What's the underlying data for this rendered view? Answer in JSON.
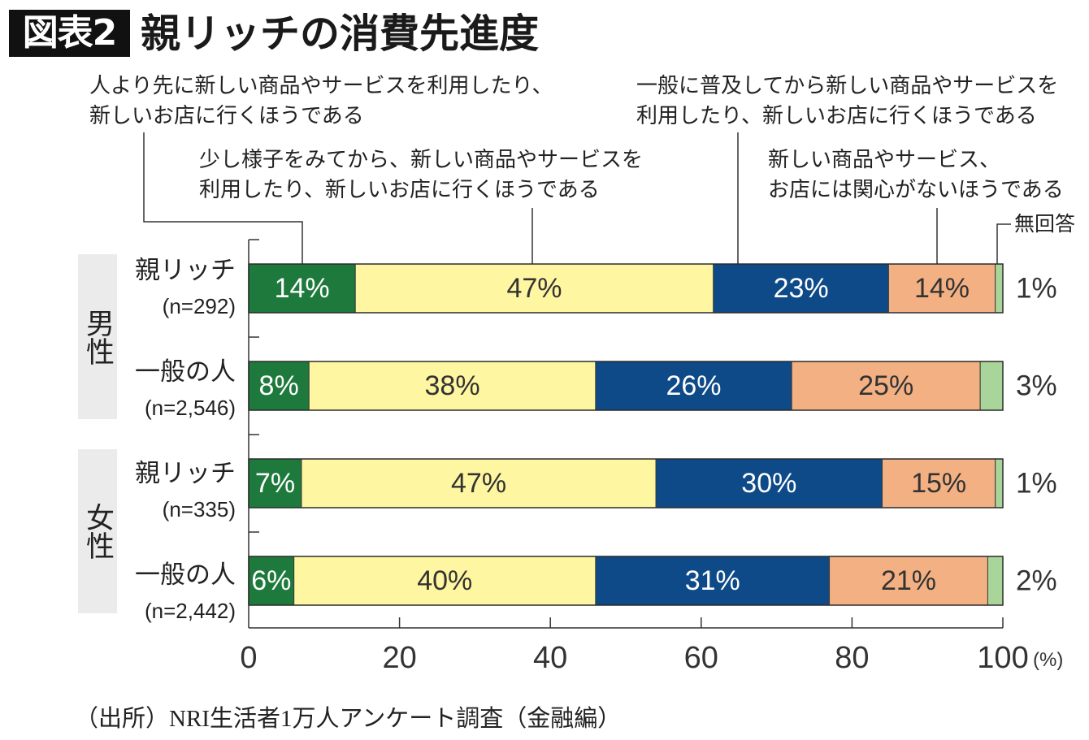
{
  "figure_number": "図表2",
  "chart_data": {
    "type": "bar",
    "orientation": "horizontal",
    "stacked": true,
    "normalized": true,
    "title": "親リッチの消費先進度",
    "groups": [
      {
        "label": "男性",
        "rows": [
          0,
          1
        ]
      },
      {
        "label": "女性",
        "rows": [
          2,
          3
        ]
      }
    ],
    "categories": [
      "親リッチ",
      "一般の人",
      "親リッチ",
      "一般の人"
    ],
    "category_notes": [
      "(n=292)",
      "(n=2,546)",
      "(n=335)",
      "(n=2,442)"
    ],
    "series": [
      {
        "name": "人より先に新しい商品やサービスを利用したり、\n新しいお店に行くほうである",
        "values": [
          14,
          8,
          7,
          6
        ],
        "color": "#1e7a3c",
        "label_color": "#ffffff"
      },
      {
        "name": "少し様子をみてから、新しい商品やサービスを\n利用したり、新しいお店に行くほうである",
        "values": [
          47,
          38,
          47,
          40
        ],
        "color": "#fef6a0",
        "label_color": "#333333"
      },
      {
        "name": "一般に普及してから新しい商品やサービスを\n利用したり、新しいお店に行くほうである",
        "values": [
          23,
          26,
          30,
          31
        ],
        "color": "#0e4a87",
        "label_color": "#ffffff"
      },
      {
        "name": "新しい商品やサービス、\nお店には関心がないほうである",
        "values": [
          14,
          25,
          15,
          21
        ],
        "color": "#f3b183",
        "label_color": "#333333"
      },
      {
        "name": "無回答",
        "values": [
          1,
          3,
          1,
          2
        ],
        "color": "#a9d59b",
        "label_color": "#333333",
        "label_placement": "outside-right"
      }
    ],
    "value_suffix": "%",
    "xlim": [
      0,
      100
    ],
    "xticks": [
      0,
      20,
      40,
      60,
      80,
      100
    ],
    "xunit": "(%)",
    "grid": false,
    "legend": "top"
  },
  "source_note": "（出所）NRI生活者1万人アンケート調査（金融編）"
}
